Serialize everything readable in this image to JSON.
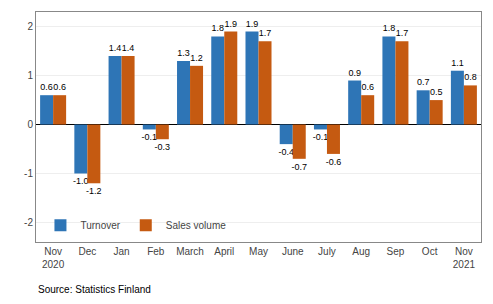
{
  "chart_data": {
    "type": "bar",
    "categories": [
      "Nov\n2020",
      "Dec",
      "Jan",
      "Feb",
      "March",
      "April",
      "May",
      "June",
      "July",
      "Aug",
      "Sep",
      "Oct",
      "Nov\n2021"
    ],
    "series": [
      {
        "name": "Turnover",
        "color": "#2E75B6",
        "values": [
          0.6,
          -1.0,
          1.4,
          -0.1,
          1.3,
          1.8,
          1.9,
          -0.4,
          -0.1,
          0.9,
          1.8,
          0.7,
          1.1
        ],
        "value_labels": [
          "0.6",
          "-1.0",
          "1.4",
          "-0.1",
          "1.3",
          "1.8",
          "1.9",
          "-0.4",
          "-0.1",
          "0.9",
          "1.8",
          "0.7",
          "1.1"
        ]
      },
      {
        "name": "Sales volume",
        "color": "#C55A11",
        "values": [
          0.6,
          -1.2,
          1.4,
          -0.3,
          1.2,
          1.9,
          1.7,
          -0.7,
          -0.6,
          0.6,
          1.7,
          0.5,
          0.8
        ],
        "value_labels": [
          "0.6",
          "-1.2",
          "1.4",
          "-0.3",
          "1.2",
          "1.9",
          "1.7",
          "-0.7",
          "-0.6",
          "0.6",
          "1.7",
          "0.5",
          "0.8"
        ]
      }
    ],
    "ylim": [
      -2.4,
      2.3
    ],
    "yticks": [
      -2,
      -1,
      0,
      1,
      2
    ],
    "grid": true,
    "legend": "lower left",
    "data_labels": true,
    "annotations": [
      "Source: Statistics Finland"
    ]
  }
}
